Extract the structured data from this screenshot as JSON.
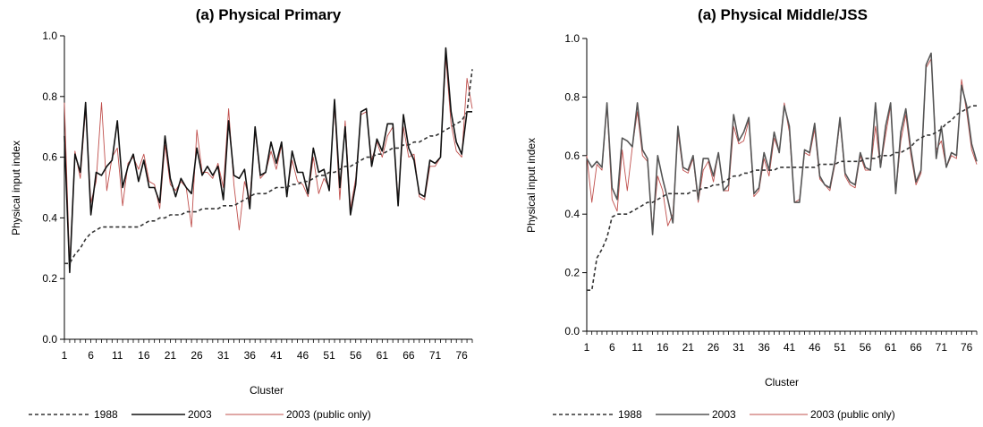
{
  "chart_data": [
    {
      "type": "line",
      "title": "(a) Physical Primary",
      "xlabel": "Cluster",
      "ylabel": "Physical input index",
      "xlim": [
        1,
        78
      ],
      "ylim": [
        0.0,
        1.0
      ],
      "x_ticks": [
        1,
        6,
        11,
        16,
        21,
        26,
        31,
        36,
        41,
        46,
        51,
        56,
        61,
        66,
        71,
        76
      ],
      "y_ticks": [
        "0.0",
        "0.2",
        "0.4",
        "0.6",
        "0.8",
        "1.0"
      ],
      "legend_position": "bottom",
      "series": [
        {
          "name": "1988",
          "style": "dashed",
          "color": "#333333",
          "values": [
            0.25,
            0.25,
            0.28,
            0.3,
            0.33,
            0.35,
            0.36,
            0.37,
            0.37,
            0.37,
            0.37,
            0.37,
            0.37,
            0.37,
            0.37,
            0.38,
            0.39,
            0.39,
            0.4,
            0.4,
            0.41,
            0.41,
            0.41,
            0.42,
            0.42,
            0.42,
            0.43,
            0.43,
            0.43,
            0.43,
            0.44,
            0.44,
            0.44,
            0.45,
            0.46,
            0.47,
            0.48,
            0.48,
            0.48,
            0.49,
            0.5,
            0.5,
            0.5,
            0.51,
            0.51,
            0.52,
            0.52,
            0.53,
            0.54,
            0.54,
            0.55,
            0.55,
            0.56,
            0.57,
            0.57,
            0.58,
            0.59,
            0.6,
            0.6,
            0.61,
            0.61,
            0.62,
            0.63,
            0.63,
            0.64,
            0.64,
            0.65,
            0.65,
            0.66,
            0.67,
            0.67,
            0.68,
            0.69,
            0.7,
            0.71,
            0.72,
            0.75,
            0.89
          ]
        },
        {
          "name": "2003",
          "style": "solid",
          "color": "#111111",
          "values": [
            0.67,
            0.22,
            0.61,
            0.55,
            0.78,
            0.41,
            0.55,
            0.54,
            0.57,
            0.59,
            0.72,
            0.5,
            0.57,
            0.61,
            0.52,
            0.59,
            0.5,
            0.5,
            0.45,
            0.67,
            0.53,
            0.47,
            0.53,
            0.5,
            0.48,
            0.63,
            0.54,
            0.57,
            0.54,
            0.57,
            0.46,
            0.72,
            0.54,
            0.53,
            0.56,
            0.43,
            0.7,
            0.54,
            0.55,
            0.65,
            0.58,
            0.65,
            0.47,
            0.62,
            0.55,
            0.55,
            0.48,
            0.63,
            0.55,
            0.56,
            0.49,
            0.79,
            0.5,
            0.7,
            0.41,
            0.51,
            0.75,
            0.76,
            0.57,
            0.66,
            0.62,
            0.71,
            0.71,
            0.44,
            0.74,
            0.63,
            0.59,
            0.48,
            0.47,
            0.59,
            0.58,
            0.6,
            0.96,
            0.75,
            0.65,
            0.61,
            0.75,
            0.75
          ]
        },
        {
          "name": "2003 (public only)",
          "style": "solid-thin",
          "color": "#c0504d",
          "values": [
            0.78,
            0.24,
            0.62,
            0.53,
            0.76,
            0.45,
            0.52,
            0.78,
            0.49,
            0.6,
            0.63,
            0.44,
            0.58,
            0.6,
            0.56,
            0.61,
            0.52,
            0.51,
            0.43,
            0.64,
            0.51,
            0.49,
            0.52,
            0.5,
            0.37,
            0.69,
            0.55,
            0.55,
            0.53,
            0.58,
            0.5,
            0.76,
            0.51,
            0.36,
            0.52,
            0.46,
            0.69,
            0.53,
            0.55,
            0.62,
            0.56,
            0.64,
            0.48,
            0.59,
            0.52,
            0.51,
            0.47,
            0.6,
            0.48,
            0.53,
            0.5,
            0.77,
            0.46,
            0.72,
            0.43,
            0.53,
            0.74,
            0.75,
            0.59,
            0.65,
            0.6,
            0.67,
            0.7,
            0.46,
            0.7,
            0.6,
            0.61,
            0.47,
            0.46,
            0.57,
            0.57,
            0.6,
            0.93,
            0.71,
            0.62,
            0.6,
            0.86,
            0.76
          ]
        }
      ]
    },
    {
      "type": "line",
      "title": "(a) Physical Middle/JSS",
      "xlabel": "Cluster",
      "ylabel": "Physical input index",
      "xlim": [
        1,
        78
      ],
      "ylim": [
        0.0,
        1.0
      ],
      "x_ticks": [
        1,
        6,
        11,
        16,
        21,
        26,
        31,
        36,
        41,
        46,
        51,
        56,
        61,
        66,
        71,
        76
      ],
      "y_ticks": [
        "0.0",
        "0.2",
        "0.4",
        "0.6",
        "0.8",
        "1.0"
      ],
      "legend_position": "bottom",
      "series": [
        {
          "name": "1988",
          "style": "dashed",
          "color": "#333333",
          "values": [
            0.14,
            0.14,
            0.25,
            0.28,
            0.32,
            0.39,
            0.4,
            0.4,
            0.4,
            0.41,
            0.42,
            0.43,
            0.44,
            0.44,
            0.45,
            0.46,
            0.47,
            0.47,
            0.47,
            0.47,
            0.47,
            0.48,
            0.48,
            0.49,
            0.49,
            0.5,
            0.5,
            0.51,
            0.52,
            0.53,
            0.53,
            0.54,
            0.54,
            0.55,
            0.55,
            0.55,
            0.55,
            0.55,
            0.56,
            0.56,
            0.56,
            0.56,
            0.56,
            0.56,
            0.56,
            0.56,
            0.57,
            0.57,
            0.57,
            0.57,
            0.58,
            0.58,
            0.58,
            0.58,
            0.58,
            0.59,
            0.59,
            0.59,
            0.6,
            0.6,
            0.6,
            0.61,
            0.61,
            0.62,
            0.63,
            0.65,
            0.66,
            0.67,
            0.67,
            0.68,
            0.69,
            0.71,
            0.72,
            0.74,
            0.75,
            0.76,
            0.77,
            0.77
          ]
        },
        {
          "name": "2003",
          "style": "solid",
          "color": "#555555",
          "values": [
            0.59,
            0.56,
            0.58,
            0.56,
            0.78,
            0.49,
            0.45,
            0.66,
            0.65,
            0.63,
            0.78,
            0.62,
            0.59,
            0.33,
            0.6,
            0.52,
            0.45,
            0.37,
            0.7,
            0.56,
            0.55,
            0.6,
            0.45,
            0.59,
            0.59,
            0.53,
            0.61,
            0.48,
            0.5,
            0.74,
            0.65,
            0.68,
            0.73,
            0.47,
            0.49,
            0.61,
            0.55,
            0.68,
            0.61,
            0.77,
            0.7,
            0.44,
            0.44,
            0.62,
            0.61,
            0.71,
            0.53,
            0.5,
            0.49,
            0.58,
            0.73,
            0.54,
            0.51,
            0.5,
            0.61,
            0.56,
            0.55,
            0.78,
            0.56,
            0.7,
            0.78,
            0.47,
            0.68,
            0.76,
            0.62,
            0.51,
            0.55,
            0.91,
            0.95,
            0.59,
            0.7,
            0.56,
            0.61,
            0.6,
            0.84,
            0.77,
            0.64,
            0.58
          ]
        },
        {
          "name": "2003 (public only)",
          "style": "solid-thin",
          "color": "#c0504d",
          "values": [
            0.6,
            0.44,
            0.57,
            0.55,
            0.77,
            0.45,
            0.41,
            0.62,
            0.48,
            0.63,
            0.75,
            0.6,
            0.58,
            0.35,
            0.53,
            0.48,
            0.36,
            0.4,
            0.68,
            0.55,
            0.54,
            0.59,
            0.44,
            0.55,
            0.58,
            0.51,
            0.61,
            0.48,
            0.48,
            0.7,
            0.64,
            0.65,
            0.72,
            0.46,
            0.48,
            0.59,
            0.53,
            0.66,
            0.61,
            0.78,
            0.68,
            0.44,
            0.45,
            0.61,
            0.6,
            0.69,
            0.52,
            0.5,
            0.48,
            0.57,
            0.72,
            0.53,
            0.5,
            0.49,
            0.6,
            0.55,
            0.55,
            0.7,
            0.56,
            0.67,
            0.77,
            0.47,
            0.65,
            0.74,
            0.6,
            0.5,
            0.54,
            0.9,
            0.93,
            0.62,
            0.65,
            0.56,
            0.6,
            0.59,
            0.86,
            0.75,
            0.62,
            0.57
          ]
        }
      ]
    }
  ]
}
